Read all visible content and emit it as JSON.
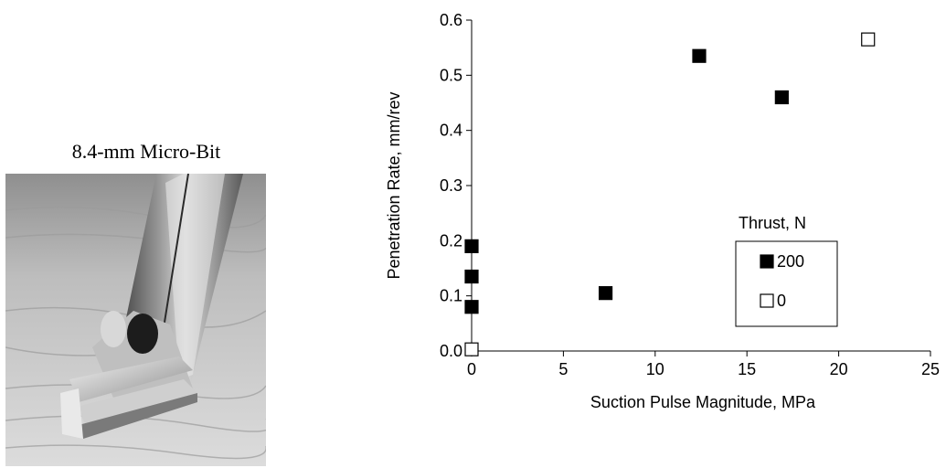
{
  "photo": {
    "caption": "8.4-mm Micro-Bit"
  },
  "chart_data": {
    "type": "scatter",
    "xlabel": "Suction Pulse Magnitude, MPa",
    "ylabel": "Penetration Rate, mm/rev",
    "xlim": [
      0,
      25
    ],
    "ylim": [
      0,
      0.6
    ],
    "x_ticks": [
      "0",
      "5",
      "10",
      "15",
      "20",
      "25"
    ],
    "y_ticks": [
      "0.0",
      "0.1",
      "0.2",
      "0.3",
      "0.4",
      "0.5",
      "0.6"
    ],
    "grid": false,
    "legend": {
      "title": "Thrust, N",
      "position": "right"
    },
    "series": [
      {
        "name": "200",
        "marker": "filled-square",
        "color": "#000000",
        "points": [
          {
            "x": 0,
            "y": 0.19
          },
          {
            "x": 0,
            "y": 0.135
          },
          {
            "x": 0,
            "y": 0.08
          },
          {
            "x": 7.3,
            "y": 0.105
          },
          {
            "x": 12.4,
            "y": 0.535
          },
          {
            "x": 16.9,
            "y": 0.46
          }
        ]
      },
      {
        "name": "0",
        "marker": "open-square",
        "color": "#000000",
        "points": [
          {
            "x": 0,
            "y": 0.003
          },
          {
            "x": 21.6,
            "y": 0.565
          }
        ]
      }
    ]
  }
}
